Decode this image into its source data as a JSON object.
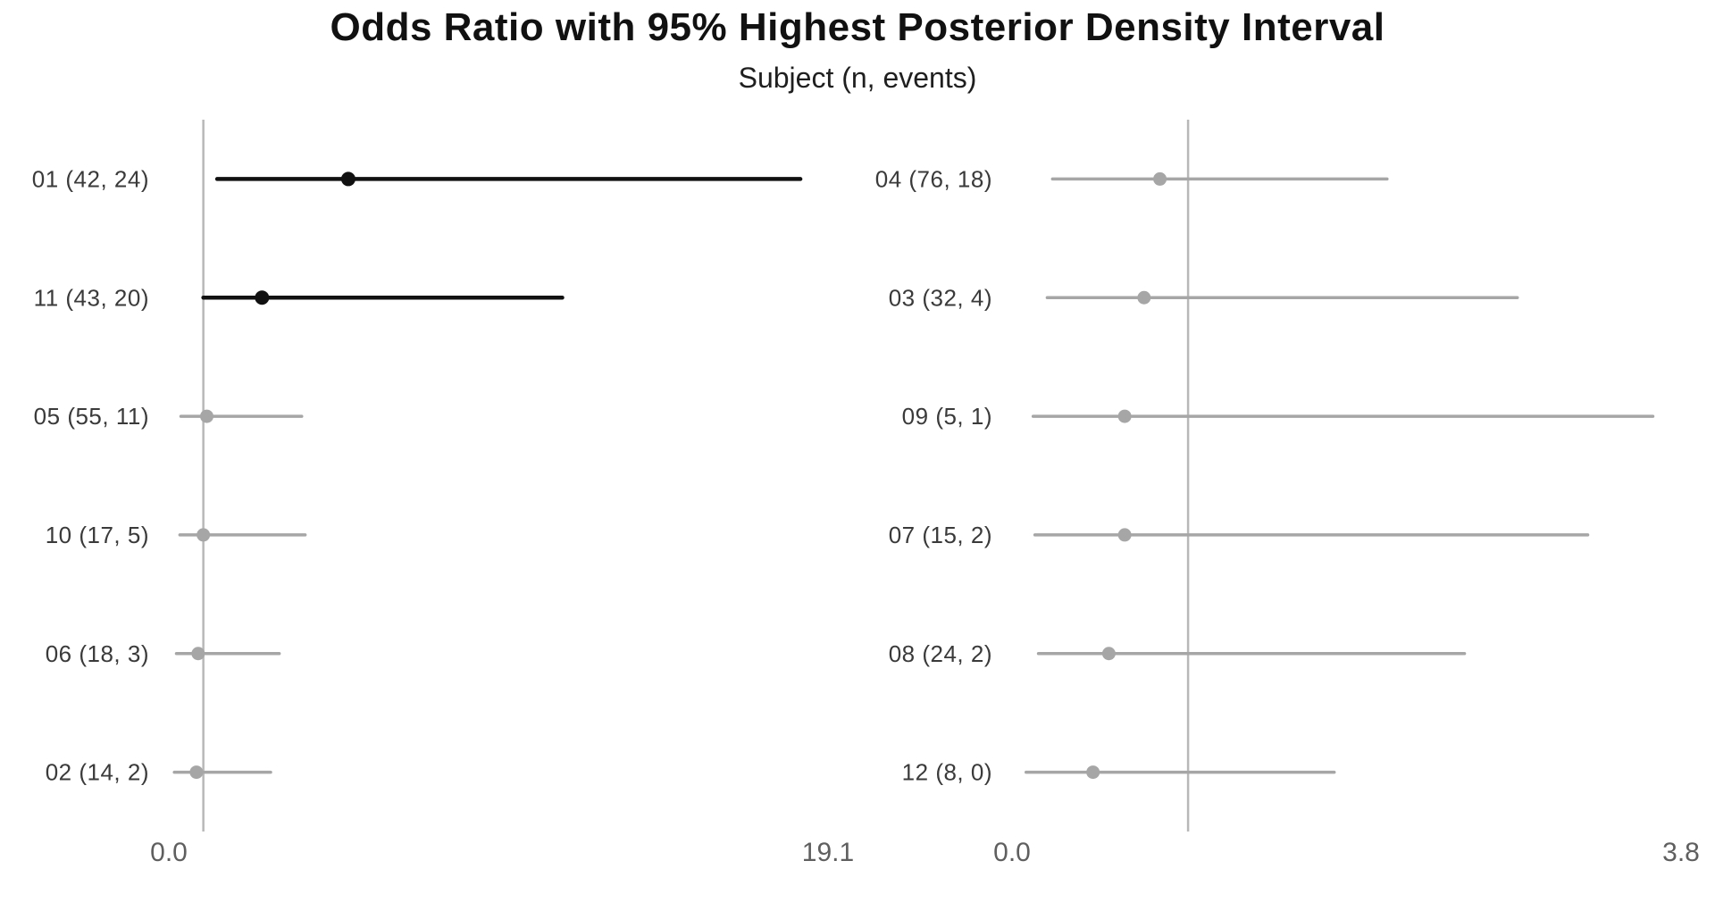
{
  "header": {
    "title": "Odds Ratio with 95% Highest Posterior Density Interval",
    "subtitle": "Subject (n, events)"
  },
  "colors": {
    "significant": "#111111",
    "nonsignificant": "#a6a6a6",
    "reference_line": "#b8b8b8",
    "tick_label": "#5f5f5f",
    "row_label": "#3a3a3a",
    "background": "#ffffff"
  },
  "chart_data": {
    "type": "forest",
    "title": "Odds Ratio with 95% Highest Posterior Density Interval",
    "subtitle": "Subject (n, events)",
    "orientation": "horizontal",
    "x_axis": "Odds Ratio",
    "grid": false,
    "panels": [
      {
        "id": "left",
        "x_min": 0.0,
        "x_max": 19.1,
        "reference_line": 1.0,
        "x_ticks": [
          {
            "value": 0.0,
            "label": "0.0"
          },
          {
            "value": 19.1,
            "label": "19.1"
          }
        ],
        "rows": [
          {
            "label": "01 (42, 24)",
            "n": 42,
            "events": 24,
            "or": 5.2,
            "ci_low": 1.4,
            "ci_high": 18.3,
            "significant": true
          },
          {
            "label": "11 (43, 20)",
            "n": 43,
            "events": 20,
            "or": 2.7,
            "ci_low": 1.0,
            "ci_high": 11.4,
            "significant": true
          },
          {
            "label": "05 (55, 11)",
            "n": 55,
            "events": 11,
            "or": 1.1,
            "ci_low": 0.35,
            "ci_high": 3.85,
            "significant": false
          },
          {
            "label": "10 (17, 5)",
            "n": 17,
            "events": 5,
            "or": 1.0,
            "ci_low": 0.32,
            "ci_high": 3.95,
            "significant": false
          },
          {
            "label": "06 (18, 3)",
            "n": 18,
            "events": 3,
            "or": 0.85,
            "ci_low": 0.22,
            "ci_high": 3.2,
            "significant": false
          },
          {
            "label": "02 (14, 2)",
            "n": 14,
            "events": 2,
            "or": 0.8,
            "ci_low": 0.16,
            "ci_high": 2.95,
            "significant": false
          }
        ]
      },
      {
        "id": "right",
        "x_min": 0.0,
        "x_max": 3.8,
        "reference_line": 1.0,
        "x_ticks": [
          {
            "value": 0.0,
            "label": "0.0"
          },
          {
            "value": 3.8,
            "label": "3.8"
          }
        ],
        "rows": [
          {
            "label": "04 (76, 18)",
            "n": 76,
            "events": 18,
            "or": 0.84,
            "ci_low": 0.23,
            "ci_high": 2.13,
            "significant": false
          },
          {
            "label": "03 (32, 4)",
            "n": 32,
            "events": 4,
            "or": 0.75,
            "ci_low": 0.2,
            "ci_high": 2.87,
            "significant": false
          },
          {
            "label": "09 (5, 1)",
            "n": 5,
            "events": 1,
            "or": 0.64,
            "ci_low": 0.12,
            "ci_high": 3.64,
            "significant": false
          },
          {
            "label": "07 (15, 2)",
            "n": 15,
            "events": 2,
            "or": 0.64,
            "ci_low": 0.13,
            "ci_high": 3.27,
            "significant": false
          },
          {
            "label": "08 (24, 2)",
            "n": 24,
            "events": 2,
            "or": 0.55,
            "ci_low": 0.15,
            "ci_high": 2.57,
            "significant": false
          },
          {
            "label": "12 (8, 0)",
            "n": 8,
            "events": 0,
            "or": 0.46,
            "ci_low": 0.08,
            "ci_high": 1.83,
            "significant": false
          }
        ]
      }
    ]
  }
}
